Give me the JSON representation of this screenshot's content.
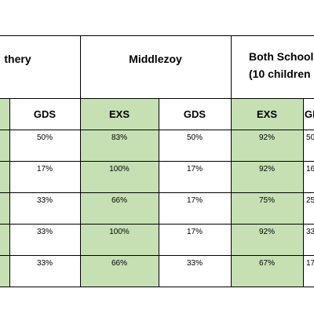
{
  "colors": {
    "green_fill": "#c6e0b4",
    "border": "#000000"
  },
  "table": {
    "groups": [
      "thery",
      "Middlezoy"
    ],
    "both_line1": "Both School",
    "both_line2": "(10 children",
    "col_headers": [
      "GDS",
      "EXS",
      "GDS",
      "EXS",
      "GI"
    ],
    "rows": [
      [
        "50%",
        "83%",
        "50%",
        "92%",
        "50"
      ],
      [
        "17%",
        "100%",
        "17%",
        "92%",
        "16"
      ],
      [
        "33%",
        "66%",
        "17%",
        "75%",
        "25"
      ],
      [
        "33%",
        "100%",
        "17%",
        "92%",
        "33"
      ],
      [
        "33%",
        "66%",
        "33%",
        "67%",
        "17"
      ]
    ]
  }
}
